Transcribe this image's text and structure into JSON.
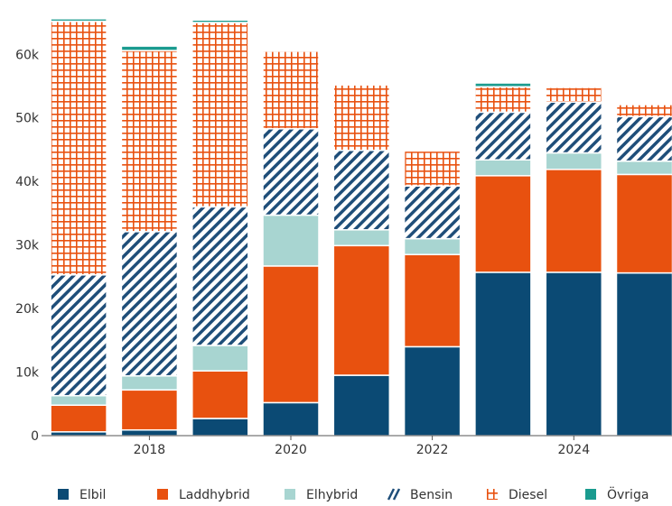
{
  "chart_data": {
    "type": "bar",
    "stacked": true,
    "x": [
      2017,
      2018,
      2019,
      2020,
      2021,
      2022,
      2023,
      2024,
      2025
    ],
    "x_tick_labels": [
      "2018",
      "2020",
      "2022",
      "2024"
    ],
    "y_tick_labels": [
      "0",
      "10k",
      "20k",
      "30k",
      "40k",
      "50k",
      "60k"
    ],
    "ylim": [
      0,
      66000
    ],
    "grid": false,
    "legend_position": "bottom",
    "series": [
      {
        "name": "Elbil",
        "color": "#0b4a74",
        "pattern": "solid",
        "values": [
          600,
          900,
          2700,
          5200,
          9500,
          14000,
          25700,
          25700,
          25600
        ]
      },
      {
        "name": "Laddhybrid",
        "color": "#e8510f",
        "pattern": "solid",
        "values": [
          4200,
          6300,
          7500,
          21500,
          20400,
          14500,
          15200,
          16200,
          15500
        ]
      },
      {
        "name": "Elhybrid",
        "color": "#a8d5d1",
        "pattern": "solid",
        "values": [
          1500,
          2200,
          4000,
          8000,
          2500,
          2500,
          2500,
          2600,
          2100
        ]
      },
      {
        "name": "Bensin",
        "color": "#1f4e79",
        "pattern": "diagonal",
        "values": [
          19000,
          22700,
          21800,
          13600,
          12500,
          8300,
          7500,
          8000,
          7000
        ]
      },
      {
        "name": "Diesel",
        "color": "#e8510f",
        "pattern": "grid",
        "values": [
          39900,
          28500,
          29000,
          12200,
          10300,
          5500,
          4000,
          2300,
          1900
        ]
      },
      {
        "name": "Övriga",
        "color": "#1a9b8f",
        "pattern": "solid",
        "values": [
          400,
          700,
          400,
          0,
          0,
          0,
          600,
          0,
          0
        ]
      }
    ]
  }
}
